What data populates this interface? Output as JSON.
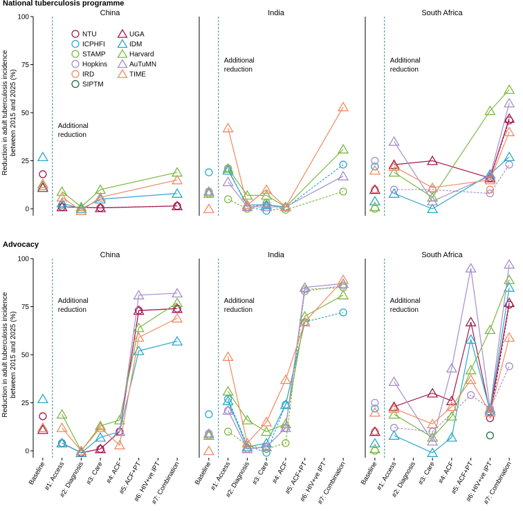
{
  "sections": [
    {
      "title": "National tuberculosis programme"
    },
    {
      "title": "Advocacy"
    }
  ],
  "ylabel_line1": "Reduction in adult tuberculosis incidence",
  "ylabel_line2": "between 2015 and 2025 (%)",
  "annotation_line1": "Additional",
  "annotation_line2": "reduction",
  "yticks": [
    0,
    25,
    50,
    75,
    100
  ],
  "xticks": [
    "Baseline",
    "#1: Access",
    "#2: Diagnosis",
    "#3: Care",
    "#4: ACF",
    "#5: ACF+PT",
    "#6: HIV+ve IPT",
    "#7: Combination"
  ],
  "models": [
    {
      "name": "NTU",
      "color": "#a3174e",
      "marker": "circle",
      "dashed": true
    },
    {
      "name": "ICPHFI",
      "color": "#2ba7c9",
      "marker": "circle",
      "dashed": true
    },
    {
      "name": "STAMP",
      "color": "#7cb842",
      "marker": "circle",
      "dashed": true
    },
    {
      "name": "Hopkins",
      "color": "#a58dc8",
      "marker": "circle",
      "dashed": true
    },
    {
      "name": "IRD",
      "color": "#ef8a62",
      "marker": "circle",
      "dashed": true
    },
    {
      "name": "SIPTM",
      "color": "#1c6b40",
      "marker": "circle",
      "dashed": true
    },
    {
      "name": "UGA",
      "color": "#a3174e",
      "marker": "triangle",
      "dashed": false
    },
    {
      "name": "IDM",
      "color": "#2ba7c9",
      "marker": "triangle",
      "dashed": false
    },
    {
      "name": "Harvard",
      "color": "#7cb842",
      "marker": "triangle",
      "dashed": false
    },
    {
      "name": "AuTuMN",
      "color": "#a58dc8",
      "marker": "triangle",
      "dashed": false
    },
    {
      "name": "TIME",
      "color": "#ef8a62",
      "marker": "triangle",
      "dashed": false
    }
  ],
  "chart_data": [
    {
      "type": "line",
      "section": "National tuberculosis programme",
      "title": "China",
      "ylim": [
        0,
        100
      ],
      "series": [
        {
          "model": "NTU",
          "values": [
            18,
            1,
            null,
            0.5,
            null,
            null,
            null,
            1.5
          ]
        },
        {
          "model": "ICPHFI",
          "values": [
            null,
            2,
            null,
            null,
            null,
            null,
            null,
            null
          ]
        },
        {
          "model": "UGA",
          "values": [
            11,
            1,
            null,
            0.5,
            null,
            null,
            null,
            1.5
          ]
        },
        {
          "model": "IDM",
          "values": [
            27,
            3,
            0,
            5,
            null,
            null,
            null,
            8
          ]
        },
        {
          "model": "Harvard",
          "values": [
            12,
            9,
            1,
            10,
            null,
            null,
            null,
            19
          ]
        },
        {
          "model": "TIME",
          "values": [
            13,
            6,
            -1,
            6,
            null,
            null,
            null,
            15
          ]
        }
      ]
    },
    {
      "type": "line",
      "section": "National tuberculosis programme",
      "title": "India",
      "ylim": [
        0,
        100
      ],
      "series": [
        {
          "model": "ICPHFI",
          "values": [
            19,
            21,
            1,
            -1,
            0.5,
            null,
            null,
            23
          ]
        },
        {
          "model": "STAMP",
          "values": [
            8,
            5,
            0,
            3,
            -0.5,
            null,
            null,
            9
          ]
        },
        {
          "model": "Hopkins",
          "values": [
            9,
            21,
            1,
            2,
            1,
            null,
            null,
            null
          ]
        },
        {
          "model": "IDM",
          "values": [
            null,
            20,
            2,
            2,
            1,
            null,
            null,
            null
          ]
        },
        {
          "model": "Harvard",
          "values": [
            8,
            21,
            7,
            7,
            1,
            null,
            null,
            31
          ]
        },
        {
          "model": "AuTuMN",
          "values": [
            9,
            14,
            1,
            1,
            1,
            null,
            null,
            17
          ]
        },
        {
          "model": "TIME",
          "values": [
            0,
            42,
            2,
            10,
            1,
            null,
            null,
            53
          ]
        }
      ]
    },
    {
      "type": "line",
      "section": "National tuberculosis programme",
      "title": "South Africa",
      "ylim": [
        0,
        100
      ],
      "series": [
        {
          "model": "NTU",
          "values": [
            10,
            null,
            null,
            null,
            null,
            null,
            16,
            46
          ]
        },
        {
          "model": "ICPHFI",
          "values": [
            22,
            null,
            null,
            null,
            null,
            null,
            null,
            null
          ]
        },
        {
          "model": "STAMP",
          "values": [
            0,
            null,
            null,
            null,
            null,
            null,
            null,
            null
          ]
        },
        {
          "model": "Hopkins",
          "values": [
            25,
            10,
            null,
            10,
            null,
            null,
            8,
            23
          ]
        },
        {
          "model": "IRD",
          "values": [
            10,
            null,
            null,
            null,
            null,
            null,
            10,
            null
          ]
        },
        {
          "model": "UGA",
          "values": [
            10,
            23,
            null,
            25,
            null,
            null,
            16,
            47
          ]
        },
        {
          "model": "IDM",
          "values": [
            4,
            8,
            null,
            0,
            null,
            null,
            18,
            27
          ]
        },
        {
          "model": "Harvard",
          "values": [
            1,
            19,
            null,
            6,
            null,
            null,
            51,
            62
          ]
        },
        {
          "model": "AuTuMN",
          "values": [
            null,
            35,
            null,
            4,
            null,
            null,
            17,
            55
          ]
        },
        {
          "model": "TIME",
          "values": [
            20,
            22,
            null,
            11,
            null,
            null,
            15,
            40
          ]
        }
      ]
    },
    {
      "type": "line",
      "section": "Advocacy",
      "title": "China",
      "ylim": [
        0,
        100
      ],
      "series": [
        {
          "model": "NTU",
          "values": [
            18,
            4,
            -1,
            1,
            10,
            73,
            null,
            74
          ]
        },
        {
          "model": "ICPHFI",
          "values": [
            null,
            4,
            null,
            null,
            null,
            null,
            null,
            null
          ]
        },
        {
          "model": "UGA",
          "values": [
            11,
            4,
            -1,
            1,
            10,
            73,
            null,
            74
          ]
        },
        {
          "model": "IDM",
          "values": [
            27,
            4,
            -1,
            7,
            10,
            52,
            null,
            57
          ]
        },
        {
          "model": "Harvard",
          "values": [
            12,
            19,
            0,
            13,
            16,
            64,
            null,
            77
          ]
        },
        {
          "model": "AuTuMN",
          "values": [
            null,
            null,
            null,
            null,
            10,
            81,
            null,
            82
          ]
        },
        {
          "model": "TIME",
          "values": [
            12,
            12,
            0,
            12,
            3,
            59,
            null,
            69
          ]
        }
      ]
    },
    {
      "type": "line",
      "section": "Advocacy",
      "title": "India",
      "ylim": [
        0,
        100
      ],
      "series": [
        {
          "model": "ICPHFI",
          "values": [
            19,
            27,
            3,
            -1,
            24,
            67,
            null,
            72
          ]
        },
        {
          "model": "STAMP",
          "values": [
            8,
            10,
            3,
            1,
            4,
            84,
            null,
            85
          ]
        },
        {
          "model": "Hopkins",
          "values": [
            9,
            21,
            1,
            2,
            12,
            83,
            null,
            86
          ]
        },
        {
          "model": "IDM",
          "values": [
            null,
            26,
            2,
            4,
            24,
            67,
            null,
            null
          ]
        },
        {
          "model": "Harvard",
          "values": [
            8,
            31,
            16,
            10,
            14,
            70,
            null,
            81
          ]
        },
        {
          "model": "AuTuMN",
          "values": [
            9,
            21,
            1,
            2,
            12,
            85,
            null,
            87
          ]
        },
        {
          "model": "TIME",
          "values": [
            0,
            49,
            4,
            15,
            37,
            67,
            null,
            89
          ]
        }
      ]
    },
    {
      "type": "line",
      "section": "Advocacy",
      "title": "South Africa",
      "ylim": [
        0,
        100
      ],
      "series": [
        {
          "model": "NTU",
          "values": [
            10,
            null,
            null,
            null,
            null,
            null,
            17,
            76
          ]
        },
        {
          "model": "ICPHFI",
          "values": [
            22,
            null,
            null,
            null,
            null,
            null,
            null,
            null
          ]
        },
        {
          "model": "STAMP",
          "values": [
            0,
            null,
            null,
            null,
            null,
            null,
            null,
            null
          ]
        },
        {
          "model": "Hopkins",
          "values": [
            25,
            12,
            null,
            10,
            null,
            29,
            22,
            44
          ]
        },
        {
          "model": "IRD",
          "values": [
            10,
            null,
            null,
            null,
            null,
            null,
            null,
            null
          ]
        },
        {
          "model": "SIPTM",
          "values": [
            null,
            null,
            null,
            null,
            null,
            null,
            8,
            null
          ]
        },
        {
          "model": "UGA",
          "values": [
            10,
            23,
            null,
            30,
            26,
            67,
            20,
            77
          ]
        },
        {
          "model": "IDM",
          "values": [
            4,
            8,
            null,
            -1,
            7,
            58,
            21,
            85
          ]
        },
        {
          "model": "Harvard",
          "values": [
            1,
            19,
            null,
            7,
            18,
            42,
            63,
            89
          ]
        },
        {
          "model": "AuTuMN",
          "values": [
            null,
            36,
            null,
            5,
            43,
            95,
            22,
            97
          ]
        },
        {
          "model": "TIME",
          "values": [
            20,
            22,
            null,
            14,
            23,
            37,
            20,
            59
          ]
        }
      ]
    }
  ]
}
